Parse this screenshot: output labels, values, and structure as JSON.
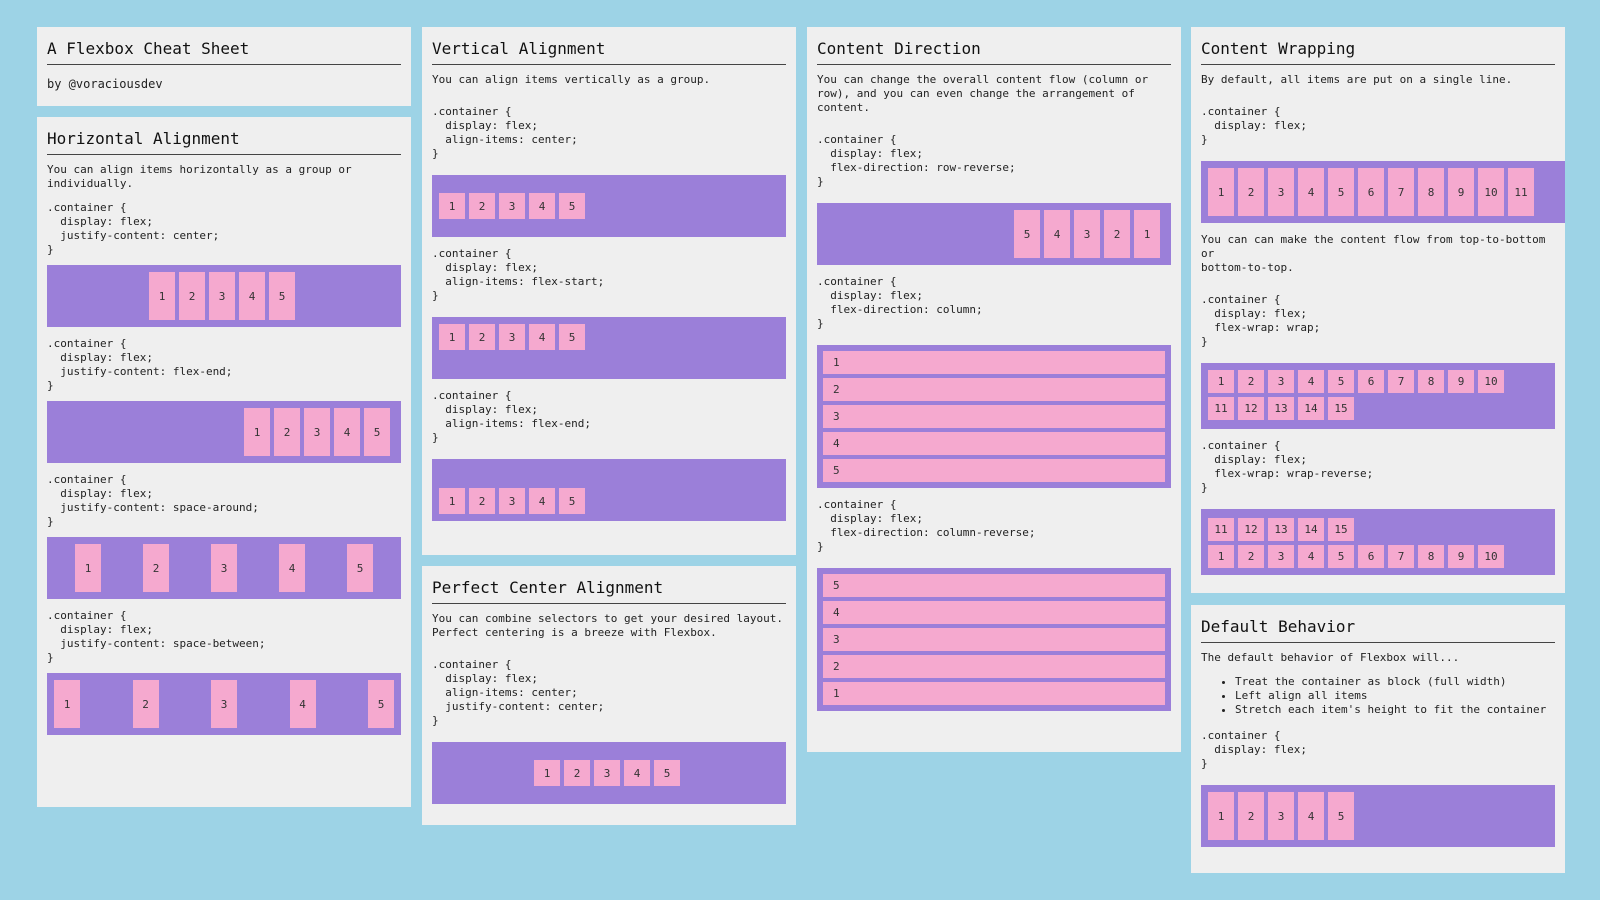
{
  "title_card": {
    "title": "A Flexbox Cheat Sheet",
    "byline": "by @voraciousdev"
  },
  "horizontal": {
    "heading": "Horizontal Alignment",
    "intro": "You can align items horizontally as a group or\nindividually.",
    "code_center": ".container {\n  display: flex;\n  justify-content: center;\n}",
    "code_end": ".container {\n  display: flex;\n  justify-content: flex-end;\n}",
    "code_around": ".container {\n  display: flex;\n  justify-content: space-around;\n}",
    "code_between": ".container {\n  display: flex;\n  justify-content: space-between;\n}",
    "items": [
      "1",
      "2",
      "3",
      "4",
      "5"
    ]
  },
  "vertical": {
    "heading": "Vertical Alignment",
    "intro": "You can align items vertically as a group.",
    "code_center": ".container {\n  display: flex;\n  align-items: center;\n}",
    "code_start": ".container {\n  display: flex;\n  align-items: flex-start;\n}",
    "code_end": ".container {\n  display: flex;\n  align-items: flex-end;\n}",
    "items": [
      "1",
      "2",
      "3",
      "4",
      "5"
    ]
  },
  "perfect": {
    "heading": "Perfect Center Alignment",
    "intro": "You can combine selectors to get your desired layout.\nPerfect centering is a breeze with Flexbox.",
    "code": ".container {\n  display: flex;\n  align-items: center;\n  justify-content: center;\n}",
    "items": [
      "1",
      "2",
      "3",
      "4",
      "5"
    ]
  },
  "direction": {
    "heading": "Content Direction",
    "intro": "You can change the overall content flow (column or\nrow), and you can even change the arrangement of\ncontent.",
    "code_rowrev": ".container {\n  display: flex;\n  flex-direction: row-reverse;\n}",
    "code_col": ".container {\n  display: flex;\n  flex-direction: column;\n}",
    "code_colrev": ".container {\n  display: flex;\n  flex-direction: column-reverse;\n}",
    "rowrev_items": [
      "5",
      "4",
      "3",
      "2",
      "1"
    ],
    "col_items": [
      "1",
      "2",
      "3",
      "4",
      "5"
    ],
    "colrev_items": [
      "5",
      "4",
      "3",
      "2",
      "1"
    ]
  },
  "wrapping": {
    "heading": "Content Wrapping",
    "intro": "By default, all items are put on a single line.",
    "code_default": ".container {\n  display: flex;\n}",
    "nowrap_items": [
      "1",
      "2",
      "3",
      "4",
      "5",
      "6",
      "7",
      "8",
      "9",
      "10",
      "11"
    ],
    "intro2": "You can can make the content flow from top-to-bottom or\nbottom-to-top.",
    "code_wrap": ".container {\n  display: flex;\n  flex-wrap: wrap;\n}",
    "wrap_row1": [
      "1",
      "2",
      "3",
      "4",
      "5",
      "6",
      "7",
      "8",
      "9",
      "10"
    ],
    "wrap_row2": [
      "11",
      "12",
      "13",
      "14",
      "15"
    ],
    "code_wraprev": ".container {\n  display: flex;\n  flex-wrap: wrap-reverse;\n}"
  },
  "default": {
    "heading": "Default Behavior",
    "intro": "The default behavior of Flexbox will...",
    "bullets": [
      "Treat the container as block (full width)",
      "Left align all items",
      "Stretch each item's height to fit the container"
    ],
    "code": ".container {\n  display: flex;\n}",
    "items": [
      "1",
      "2",
      "3",
      "4",
      "5"
    ]
  },
  "colors": {
    "background": "#9dd3e6",
    "card": "#efefef",
    "container": "#9b7fd9",
    "item": "#f5a9cf"
  }
}
